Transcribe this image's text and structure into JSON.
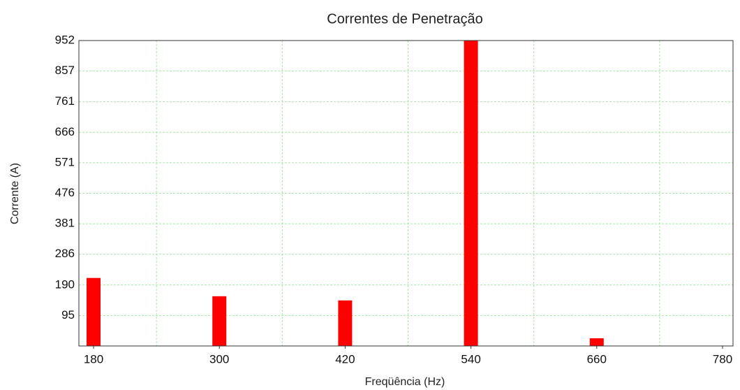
{
  "chart_data": {
    "type": "bar",
    "title": "Correntes de Penetração",
    "x_label": "Freqüência (Hz)",
    "y_label": "Corrente (A)",
    "x": [
      180,
      300,
      420,
      540,
      660
    ],
    "values": [
      212,
      155,
      142,
      952,
      24
    ],
    "color": "#ff0000",
    "xlim": [
      166,
      790
    ],
    "xticks": [
      180,
      300,
      420,
      540,
      660,
      780
    ],
    "xgrid": [
      240,
      360,
      480,
      600,
      720
    ],
    "ylim": [
      0,
      952
    ],
    "yticks": [
      95,
      190,
      286,
      381,
      476,
      571,
      666,
      761,
      857,
      952
    ],
    "grid": true
  }
}
